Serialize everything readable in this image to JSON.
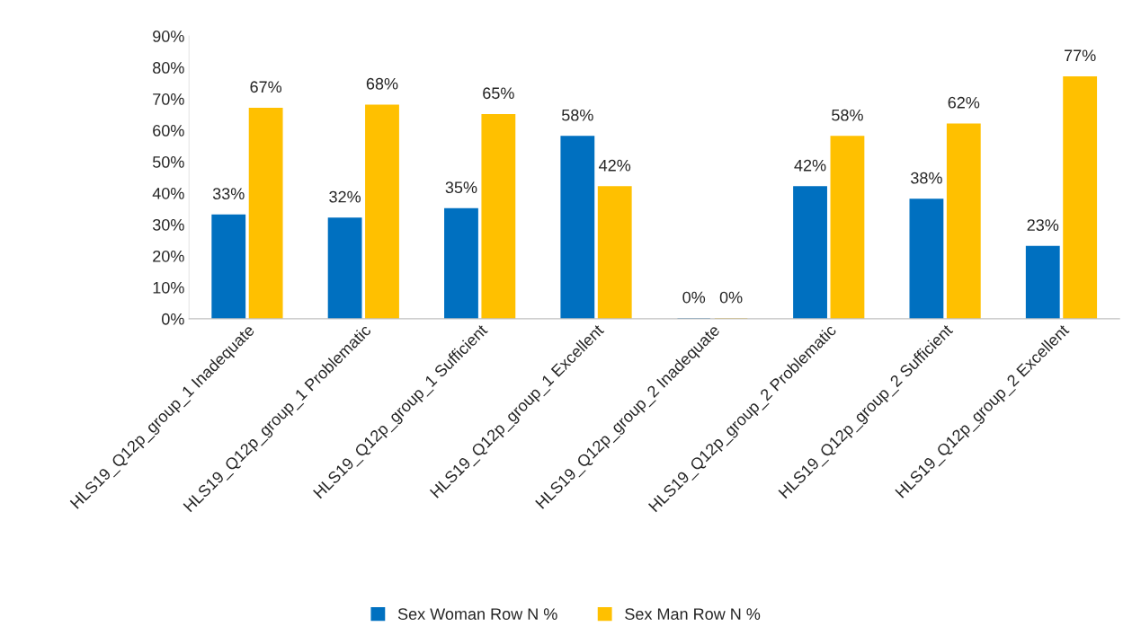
{
  "chart_data": {
    "type": "bar",
    "categories": [
      "HLS19_Q12p_group_1 Inadequate",
      "HLS19_Q12p_group_1 Problematic",
      "HLS19_Q12p_group_1 Sufficient",
      "HLS19_Q12p_group_1 Excellent",
      "HLS19_Q12p_group_2 Inadequate",
      "HLS19_Q12p_group_2 Problematic",
      "HLS19_Q12p_group_2 Sufficient",
      "HLS19_Q12p_group_2 Excellent"
    ],
    "series": [
      {
        "name": "Sex Woman Row N %",
        "color": "#0070c0",
        "values": [
          33,
          32,
          35,
          58,
          0,
          42,
          38,
          23
        ],
        "value_labels": [
          "33%",
          "32%",
          "35%",
          "58%",
          "0%",
          "42%",
          "38%",
          "23%"
        ]
      },
      {
        "name": "Sex Man Row N %",
        "color": "#ffc000",
        "values": [
          67,
          68,
          65,
          42,
          0,
          58,
          62,
          77
        ],
        "value_labels": [
          "67%",
          "68%",
          "65%",
          "42%",
          "0%",
          "58%",
          "62%",
          "77%"
        ]
      }
    ],
    "ylim": [
      0,
      90
    ],
    "yticks": [
      {
        "value": 0,
        "label": "0%"
      },
      {
        "value": 10,
        "label": "10%"
      },
      {
        "value": 20,
        "label": "20%"
      },
      {
        "value": 30,
        "label": "30%"
      },
      {
        "value": 40,
        "label": "40%"
      },
      {
        "value": 50,
        "label": "50%"
      },
      {
        "value": 60,
        "label": "60%"
      },
      {
        "value": 70,
        "label": "70%"
      },
      {
        "value": 80,
        "label": "80%"
      },
      {
        "value": 90,
        "label": "90%"
      }
    ],
    "grid": false,
    "legend": "bottom"
  }
}
